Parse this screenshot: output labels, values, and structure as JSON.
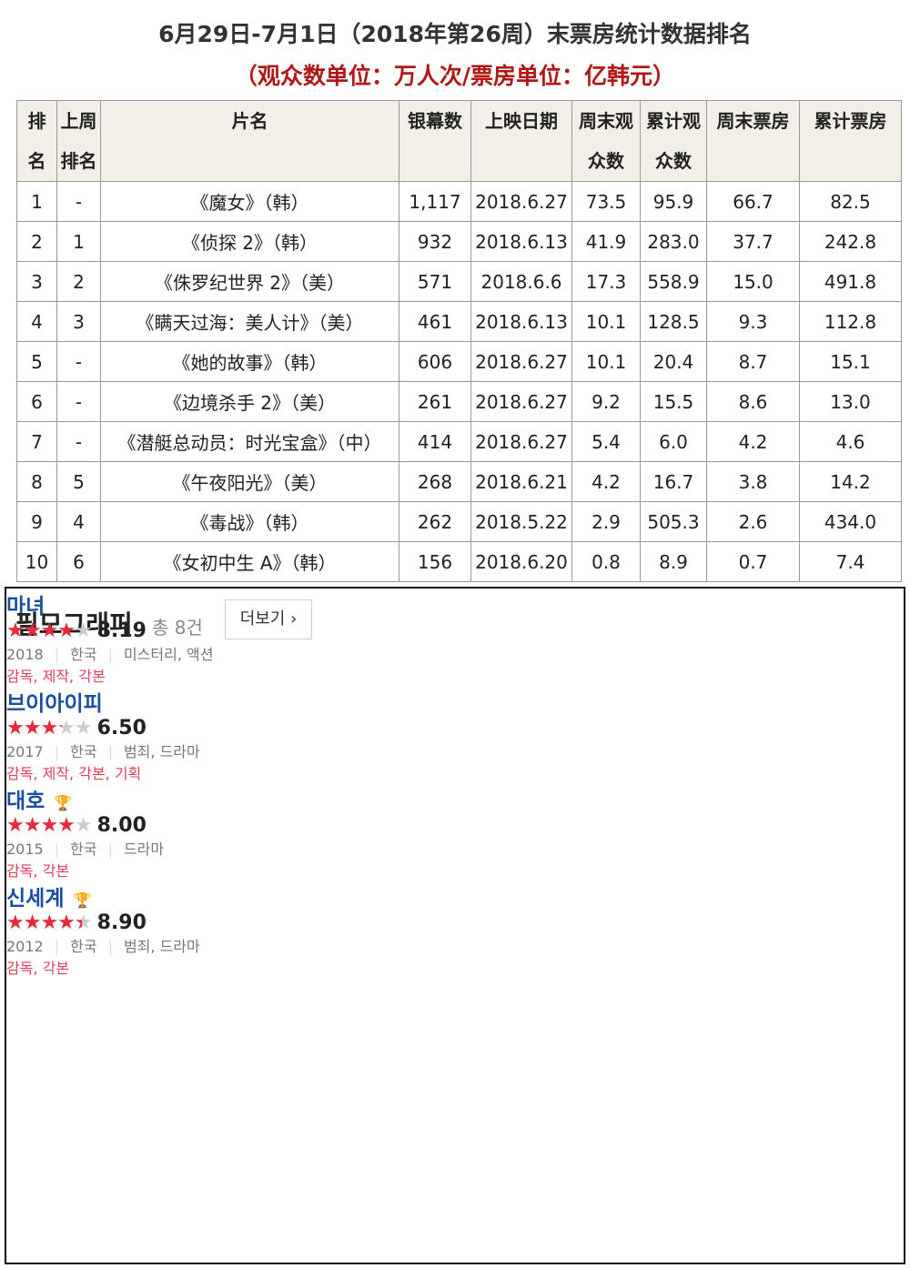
{
  "header": {
    "title": "6月29日-7月1日（2018年第26周）末票房统计数据排名",
    "subtitle": "（观众数单位：万人次/票房单位：亿韩元）"
  },
  "table": {
    "columns": [
      "排名",
      "上周排名",
      "片名",
      "银幕数",
      "上映日期",
      "周末观众数",
      "累计观众数",
      "周末票房",
      "累计票房"
    ],
    "rows": [
      [
        "1",
        "-",
        "《魔女》（韩）",
        "1,117",
        "2018.6.27",
        "73.5",
        "95.9",
        "66.7",
        "82.5"
      ],
      [
        "2",
        "1",
        "《侦探 2》（韩）",
        "932",
        "2018.6.13",
        "41.9",
        "283.0",
        "37.7",
        "242.8"
      ],
      [
        "3",
        "2",
        "《侏罗纪世界 2》（美）",
        "571",
        "2018.6.6",
        "17.3",
        "558.9",
        "15.0",
        "491.8"
      ],
      [
        "4",
        "3",
        "《瞒天过海：美人计》（美）",
        "461",
        "2018.6.13",
        "10.1",
        "128.5",
        "9.3",
        "112.8"
      ],
      [
        "5",
        "-",
        "《她的故事》（韩）",
        "606",
        "2018.6.27",
        "10.1",
        "20.4",
        "8.7",
        "15.1"
      ],
      [
        "6",
        "-",
        "《边境杀手 2》（美）",
        "261",
        "2018.6.27",
        "9.2",
        "15.5",
        "8.6",
        "13.0"
      ],
      [
        "7",
        "-",
        "《潜艇总动员：时光宝盒》（中）",
        "414",
        "2018.6.27",
        "5.4",
        "6.0",
        "4.2",
        "4.6"
      ],
      [
        "8",
        "5",
        "《午夜阳光》（美）",
        "268",
        "2018.6.21",
        "4.2",
        "16.7",
        "3.8",
        "14.2"
      ],
      [
        "9",
        "4",
        "《毒战》（韩）",
        "262",
        "2018.5.22",
        "2.9",
        "505.3",
        "2.6",
        "434.0"
      ],
      [
        "10",
        "6",
        "《女初中生 A》（韩）",
        "156",
        "2018.6.20",
        "0.8",
        "8.9",
        "0.7",
        "7.4"
      ]
    ]
  },
  "filmography": {
    "title": "필모그래피",
    "count": "총 8건",
    "more": "더보기 ›",
    "items": [
      {
        "title": "마녀",
        "rating": "8.19",
        "year": "2018",
        "country": "한국",
        "genre": "미스터리, 액션",
        "roles": "감독, 제작, 각본",
        "award": false
      },
      {
        "title": "브이아이피",
        "rating": "6.50",
        "year": "2017",
        "country": "한국",
        "genre": "범죄, 드라마",
        "roles": "감독, 제작, 각본, 기획",
        "award": false
      },
      {
        "title": "대호",
        "rating": "8.00",
        "year": "2015",
        "country": "한국",
        "genre": "드라마",
        "roles": "감독, 각본",
        "award": true
      },
      {
        "title": "신세계",
        "rating": "8.90",
        "year": "2012",
        "country": "한국",
        "genre": "범죄, 드라마",
        "roles": "감독, 각본",
        "award": true
      }
    ]
  }
}
